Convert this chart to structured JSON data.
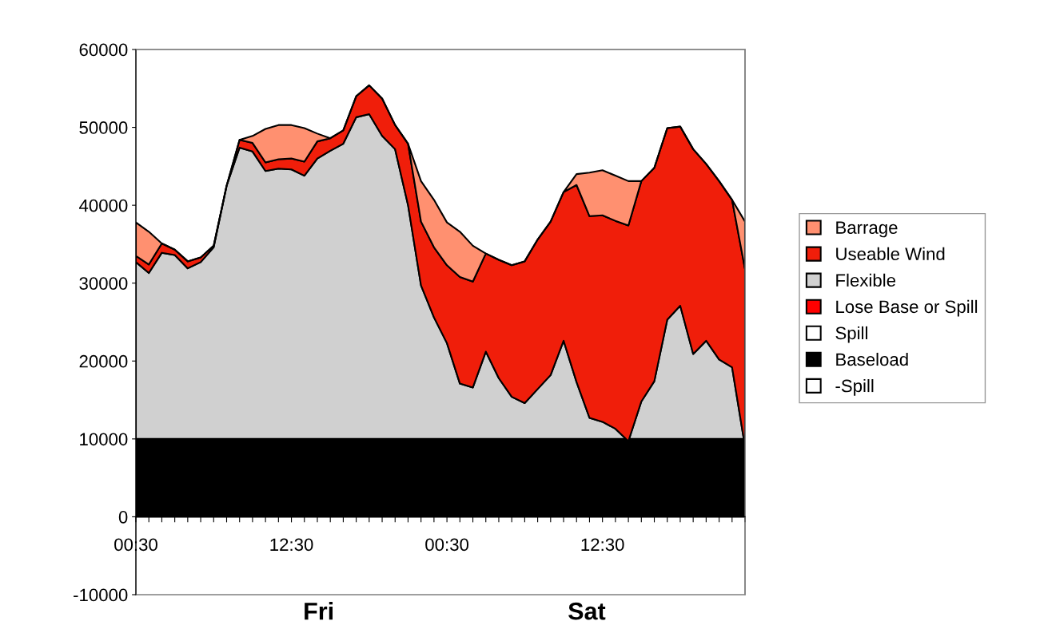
{
  "chart_data": {
    "type": "area",
    "stacked": true,
    "categories": [
      "00:30",
      null,
      null,
      null,
      null,
      null,
      null,
      null,
      null,
      null,
      null,
      null,
      "12:30",
      null,
      null,
      null,
      null,
      null,
      null,
      null,
      null,
      null,
      null,
      null,
      "00:30",
      null,
      null,
      null,
      null,
      null,
      null,
      null,
      null,
      null,
      null,
      null,
      "12:30",
      null,
      null,
      null,
      null,
      null,
      null,
      null,
      null,
      null,
      null,
      null
    ],
    "ylim": [
      -10000,
      60000
    ],
    "yticks": [
      -10000,
      0,
      10000,
      20000,
      30000,
      40000,
      50000,
      60000
    ],
    "grid": false,
    "legend": "right",
    "annotations": [
      "Fri",
      "Sat"
    ],
    "series": [
      {
        "name": "-Spill",
        "color": "#ffffff",
        "values": [
          null,
          null,
          null,
          null,
          null,
          null,
          null,
          null,
          null,
          null,
          null,
          null,
          null,
          null,
          null,
          null,
          null,
          null,
          null,
          null,
          null,
          null,
          null,
          null,
          null,
          null,
          null,
          null,
          null,
          null,
          null,
          null,
          null,
          null,
          null,
          null,
          null,
          null,
          null,
          null,
          null,
          null,
          null,
          null,
          null,
          null,
          null,
          null
        ]
      },
      {
        "name": "Baseload",
        "color": "#000000",
        "values": [
          10000,
          10000,
          10000,
          10000,
          10000,
          10000,
          10000,
          10000,
          10000,
          10000,
          10000,
          10000,
          10000,
          10000,
          10000,
          10000,
          10000,
          10000,
          10000,
          10000,
          10000,
          10000,
          10000,
          10000,
          10000,
          10000,
          10000,
          10000,
          10000,
          10000,
          10000,
          10000,
          10000,
          10000,
          10000,
          10000,
          10000,
          10000,
          10000,
          10000,
          10000,
          10000,
          10000,
          10000,
          10000,
          10000,
          10000,
          10000
        ]
      },
      {
        "name": "Spill",
        "color": "#ffffff",
        "values": [
          null,
          null,
          null,
          null,
          null,
          null,
          null,
          null,
          null,
          null,
          null,
          null,
          null,
          null,
          null,
          null,
          null,
          null,
          null,
          null,
          null,
          null,
          null,
          null,
          null,
          null,
          null,
          null,
          null,
          null,
          null,
          null,
          null,
          null,
          null,
          null,
          null,
          null,
          null,
          null,
          null,
          null,
          null,
          null,
          null,
          null,
          null,
          null
        ]
      },
      {
        "name": "Lose Base or Spill",
        "color": "#ff0000",
        "values": [
          null,
          null,
          null,
          null,
          null,
          null,
          null,
          null,
          null,
          null,
          null,
          null,
          null,
          null,
          null,
          null,
          null,
          null,
          null,
          null,
          null,
          null,
          null,
          null,
          null,
          null,
          null,
          null,
          null,
          null,
          null,
          null,
          null,
          null,
          null,
          null,
          null,
          null,
          null,
          null,
          null,
          null,
          null,
          null,
          null,
          null,
          null,
          null
        ]
      },
      {
        "name": "Flexible",
        "color": "#d0d0d0",
        "values": [
          22700,
          21300,
          23900,
          23600,
          21900,
          22700,
          24600,
          32500,
          37400,
          36900,
          34400,
          34700,
          34600,
          33800,
          36000,
          37000,
          37900,
          41300,
          41700,
          38900,
          37200,
          30000,
          19700,
          15600,
          12300,
          7100,
          6600,
          11200,
          7800,
          5400,
          4600,
          6400,
          8200,
          12600,
          7300,
          2700,
          2200,
          1300,
          -300,
          4800,
          7400,
          15300,
          17100,
          10900,
          12600,
          10200,
          9200,
          -1000
        ]
      },
      {
        "name": "Useable Wind",
        "color": "#f01e0a",
        "values": [
          800,
          1100,
          1200,
          700,
          900,
          600,
          200,
          0,
          1000,
          1100,
          1100,
          1200,
          1400,
          1800,
          2200,
          1600,
          1700,
          2700,
          3700,
          4800,
          3100,
          7900,
          8200,
          9000,
          10000,
          13700,
          13600,
          12600,
          15200,
          16900,
          18200,
          19200,
          19700,
          19100,
          25300,
          25900,
          26500,
          26700,
          27700,
          28300,
          27400,
          24600,
          23000,
          26300,
          22700,
          22900,
          21500,
          22800
        ]
      },
      {
        "name": "Barrage",
        "color": "#ff9070",
        "values": [
          4300,
          4200,
          0,
          0,
          0,
          0,
          0,
          0,
          0,
          900,
          4300,
          4400,
          4300,
          4300,
          1000,
          0,
          0,
          0,
          0,
          0,
          0,
          0,
          5200,
          6100,
          5500,
          5800,
          4600,
          0,
          0,
          0,
          0,
          0,
          0,
          0,
          1400,
          5600,
          5800,
          5800,
          5700,
          0,
          0,
          0,
          0,
          0,
          0,
          0,
          0,
          6100
        ]
      }
    ]
  }
}
